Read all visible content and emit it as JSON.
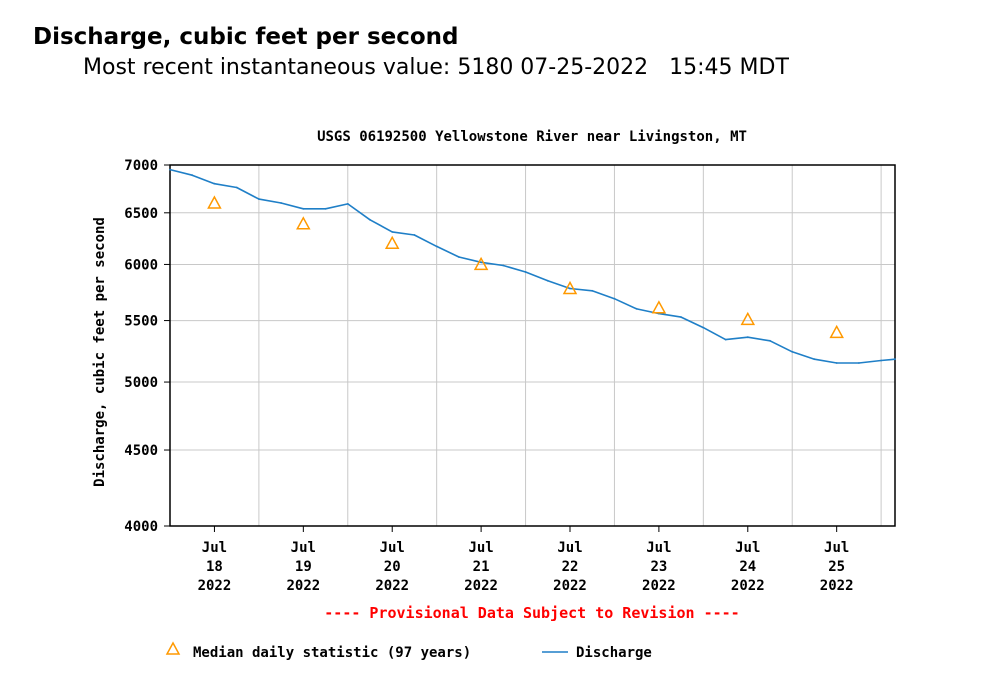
{
  "page": {
    "heading": "Discharge, cubic feet per second",
    "subheading": "Most recent instantaneous value: 5180 07-25-2022   15:45 MDT"
  },
  "chart_data": {
    "type": "line",
    "title": "USGS 06192500 Yellowstone River near Livingston, MT",
    "ylabel": "Discharge, cubic feet per second",
    "xlabel": "",
    "yscale": "log",
    "ylim": [
      4000,
      7000
    ],
    "y_ticks": [
      4000,
      4500,
      5000,
      5500,
      6000,
      6500,
      7000
    ],
    "xlim": [
      "2022-07-17T12:00",
      "2022-07-25T15:45"
    ],
    "x_ticks": [
      {
        "date": "2022-07-18",
        "label_lines": [
          "Jul",
          "18",
          "2022"
        ]
      },
      {
        "date": "2022-07-19",
        "label_lines": [
          "Jul",
          "19",
          "2022"
        ]
      },
      {
        "date": "2022-07-20",
        "label_lines": [
          "Jul",
          "20",
          "2022"
        ]
      },
      {
        "date": "2022-07-21",
        "label_lines": [
          "Jul",
          "21",
          "2022"
        ]
      },
      {
        "date": "2022-07-22",
        "label_lines": [
          "Jul",
          "22",
          "2022"
        ]
      },
      {
        "date": "2022-07-23",
        "label_lines": [
          "Jul",
          "23",
          "2022"
        ]
      },
      {
        "date": "2022-07-24",
        "label_lines": [
          "Jul",
          "24",
          "2022"
        ]
      },
      {
        "date": "2022-07-25",
        "label_lines": [
          "Jul",
          "25",
          "2022"
        ]
      }
    ],
    "grid": true,
    "provisional_note": "---- Provisional Data Subject to Revision ----",
    "series": [
      {
        "name": "Discharge",
        "kind": "line",
        "color": "#1f7fc7",
        "points": [
          {
            "x": "2022-07-17T12:00",
            "y": 6950
          },
          {
            "x": "2022-07-17T18:00",
            "y": 6890
          },
          {
            "x": "2022-07-18T00:00",
            "y": 6800
          },
          {
            "x": "2022-07-18T06:00",
            "y": 6760
          },
          {
            "x": "2022-07-18T12:00",
            "y": 6640
          },
          {
            "x": "2022-07-18T18:00",
            "y": 6600
          },
          {
            "x": "2022-07-19T00:00",
            "y": 6540
          },
          {
            "x": "2022-07-19T06:00",
            "y": 6540
          },
          {
            "x": "2022-07-19T12:00",
            "y": 6590
          },
          {
            "x": "2022-07-19T18:00",
            "y": 6430
          },
          {
            "x": "2022-07-20T00:00",
            "y": 6310
          },
          {
            "x": "2022-07-20T06:00",
            "y": 6280
          },
          {
            "x": "2022-07-20T12:00",
            "y": 6170
          },
          {
            "x": "2022-07-20T18:00",
            "y": 6070
          },
          {
            "x": "2022-07-21T00:00",
            "y": 6020
          },
          {
            "x": "2022-07-21T06:00",
            "y": 5990
          },
          {
            "x": "2022-07-21T12:00",
            "y": 5930
          },
          {
            "x": "2022-07-21T18:00",
            "y": 5850
          },
          {
            "x": "2022-07-22T00:00",
            "y": 5780
          },
          {
            "x": "2022-07-22T06:00",
            "y": 5760
          },
          {
            "x": "2022-07-22T12:00",
            "y": 5690
          },
          {
            "x": "2022-07-22T18:00",
            "y": 5600
          },
          {
            "x": "2022-07-23T00:00",
            "y": 5560
          },
          {
            "x": "2022-07-23T06:00",
            "y": 5530
          },
          {
            "x": "2022-07-23T12:00",
            "y": 5440
          },
          {
            "x": "2022-07-23T18:00",
            "y": 5340
          },
          {
            "x": "2022-07-24T00:00",
            "y": 5360
          },
          {
            "x": "2022-07-24T06:00",
            "y": 5330
          },
          {
            "x": "2022-07-24T12:00",
            "y": 5240
          },
          {
            "x": "2022-07-24T18:00",
            "y": 5180
          },
          {
            "x": "2022-07-25T00:00",
            "y": 5150
          },
          {
            "x": "2022-07-25T06:00",
            "y": 5150
          },
          {
            "x": "2022-07-25T12:00",
            "y": 5170
          },
          {
            "x": "2022-07-25T15:45",
            "y": 5180
          }
        ]
      },
      {
        "name": "Median daily statistic (97 years)",
        "kind": "marker",
        "marker": "triangle",
        "color": "#ff9900",
        "points": [
          {
            "x": "2022-07-18T00:00",
            "y": 6600
          },
          {
            "x": "2022-07-19T00:00",
            "y": 6390
          },
          {
            "x": "2022-07-20T00:00",
            "y": 6200
          },
          {
            "x": "2022-07-21T00:00",
            "y": 6000
          },
          {
            "x": "2022-07-22T00:00",
            "y": 5780
          },
          {
            "x": "2022-07-23T00:00",
            "y": 5610
          },
          {
            "x": "2022-07-24T00:00",
            "y": 5510
          },
          {
            "x": "2022-07-25T00:00",
            "y": 5400
          }
        ]
      }
    ],
    "legend": [
      {
        "label": "Median daily statistic (97 years)",
        "symbol": "triangle",
        "color": "#ff9900"
      },
      {
        "label": "Discharge",
        "symbol": "line",
        "color": "#1f7fc7"
      }
    ],
    "legend_placement": "bottom",
    "colors": {
      "grid": "#c8c8c8",
      "note": "#ff0000",
      "axis": "#000000"
    }
  }
}
